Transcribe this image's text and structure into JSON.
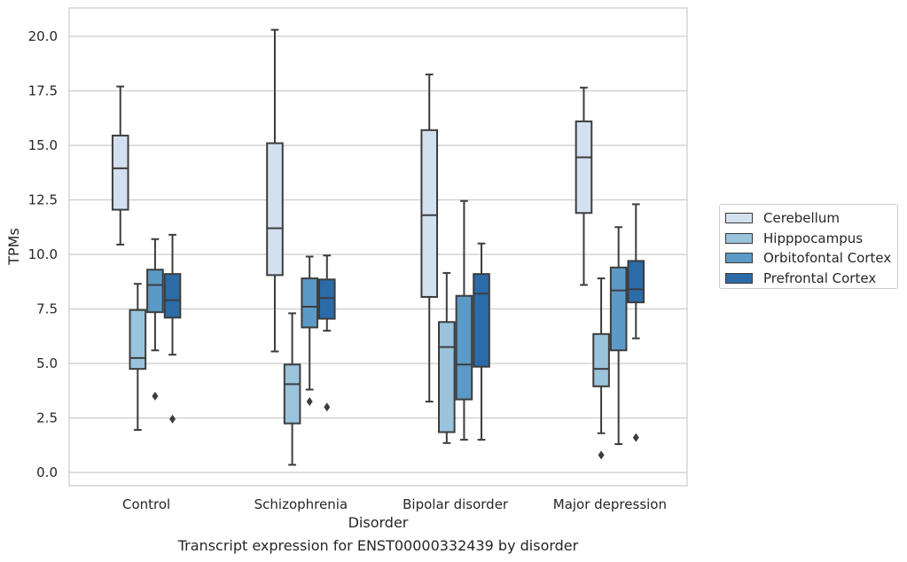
{
  "chart_data": {
    "type": "box",
    "title": "Transcript expression for ENST00000332439 by disorder",
    "xlabel": "Disorder",
    "ylabel": "TPMs",
    "ylim": [
      -0.6,
      21.3
    ],
    "yticks": [
      0.0,
      2.5,
      5.0,
      7.5,
      10.0,
      12.5,
      15.0,
      17.5,
      20.0
    ],
    "ytick_labels": [
      "0.0",
      "2.5",
      "5.0",
      "7.5",
      "10.0",
      "12.5",
      "15.0",
      "17.5",
      "20.0"
    ],
    "grid": true,
    "legend_position": "right",
    "categories": [
      "Control",
      "Schizophrenia",
      "Bipolar disorder",
      "Major depression"
    ],
    "series": [
      {
        "name": "Cerebellum",
        "color": "#d3e0ef",
        "boxes": [
          {
            "whislo": 10.45,
            "q1": 12.05,
            "med": 13.95,
            "q3": 15.45,
            "whishi": 17.7,
            "fliers": []
          },
          {
            "whislo": 5.55,
            "q1": 9.05,
            "med": 11.2,
            "q3": 15.1,
            "whishi": 20.3,
            "fliers": []
          },
          {
            "whislo": 3.25,
            "q1": 8.05,
            "med": 11.8,
            "q3": 15.7,
            "whishi": 18.25,
            "fliers": []
          },
          {
            "whislo": 8.6,
            "q1": 11.9,
            "med": 14.45,
            "q3": 16.1,
            "whishi": 17.65,
            "fliers": []
          }
        ]
      },
      {
        "name": "Hipppocampus",
        "color": "#9ac3dc",
        "boxes": [
          {
            "whislo": 1.95,
            "q1": 4.75,
            "med": 5.25,
            "q3": 7.45,
            "whishi": 8.65,
            "fliers": []
          },
          {
            "whislo": 0.35,
            "q1": 2.25,
            "med": 4.05,
            "q3": 4.95,
            "whishi": 7.3,
            "fliers": []
          },
          {
            "whislo": 1.35,
            "q1": 1.85,
            "med": 5.75,
            "q3": 6.9,
            "whishi": 9.15,
            "fliers": []
          },
          {
            "whislo": 1.8,
            "q1": 3.95,
            "med": 4.75,
            "q3": 6.35,
            "whishi": 8.9,
            "fliers": [
              0.8
            ]
          }
        ]
      },
      {
        "name": "Orbitofontal Cortex",
        "color": "#5b9ac6",
        "boxes": [
          {
            "whislo": 5.6,
            "q1": 7.35,
            "med": 8.6,
            "q3": 9.3,
            "whishi": 10.7,
            "fliers": [
              3.5
            ]
          },
          {
            "whislo": 3.8,
            "q1": 6.65,
            "med": 7.6,
            "q3": 8.9,
            "whishi": 9.9,
            "fliers": [
              3.25
            ]
          },
          {
            "whislo": 1.5,
            "q1": 3.35,
            "med": 4.95,
            "q3": 8.1,
            "whishi": 12.45,
            "fliers": []
          },
          {
            "whislo": 1.3,
            "q1": 5.6,
            "med": 8.35,
            "q3": 9.4,
            "whishi": 11.25,
            "fliers": []
          }
        ]
      },
      {
        "name": "Prefrontal Cortex",
        "color": "#2b6ba8",
        "boxes": [
          {
            "whislo": 5.4,
            "q1": 7.1,
            "med": 7.9,
            "q3": 9.1,
            "whishi": 10.9,
            "fliers": [
              2.45
            ]
          },
          {
            "whislo": 6.5,
            "q1": 7.05,
            "med": 8.0,
            "q3": 8.85,
            "whishi": 9.95,
            "fliers": [
              3.0
            ]
          },
          {
            "whislo": 1.5,
            "q1": 4.85,
            "med": 8.2,
            "q3": 9.1,
            "whishi": 10.5,
            "fliers": []
          },
          {
            "whislo": 6.15,
            "q1": 7.8,
            "med": 8.4,
            "q3": 9.7,
            "whishi": 12.3,
            "fliers": [
              1.6
            ]
          }
        ]
      }
    ]
  }
}
